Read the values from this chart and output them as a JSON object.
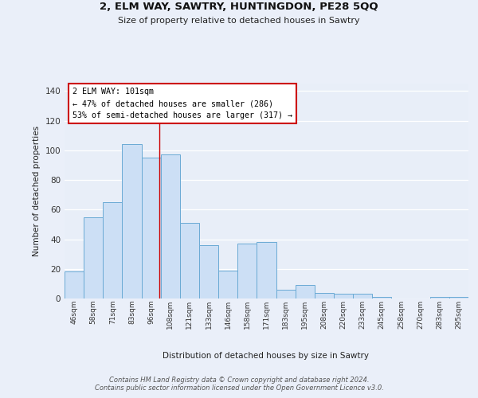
{
  "title": "2, ELM WAY, SAWTRY, HUNTINGDON, PE28 5QQ",
  "subtitle": "Size of property relative to detached houses in Sawtry",
  "xlabel": "Distribution of detached houses by size in Sawtry",
  "ylabel": "Number of detached properties",
  "categories": [
    "46sqm",
    "58sqm",
    "71sqm",
    "83sqm",
    "96sqm",
    "108sqm",
    "121sqm",
    "133sqm",
    "146sqm",
    "158sqm",
    "171sqm",
    "183sqm",
    "195sqm",
    "208sqm",
    "220sqm",
    "233sqm",
    "245sqm",
    "258sqm",
    "270sqm",
    "283sqm",
    "295sqm"
  ],
  "values": [
    18,
    55,
    65,
    104,
    95,
    97,
    51,
    36,
    19,
    37,
    38,
    6,
    9,
    4,
    3,
    3,
    1,
    0,
    0,
    1,
    1
  ],
  "bar_color": "#ccdff5",
  "bar_edge_color": "#6aaad4",
  "background_color": "#e8eef8",
  "red_line_x": 4.42,
  "annotation_line1": "2 ELM WAY: 101sqm",
  "annotation_line2": "← 47% of detached houses are smaller (286)",
  "annotation_line3": "53% of semi-detached houses are larger (317) →",
  "ylim_max": 145,
  "yticks": [
    0,
    20,
    40,
    60,
    80,
    100,
    120,
    140
  ],
  "footer": "Contains HM Land Registry data © Crown copyright and database right 2024.\nContains public sector information licensed under the Open Government Licence v3.0."
}
